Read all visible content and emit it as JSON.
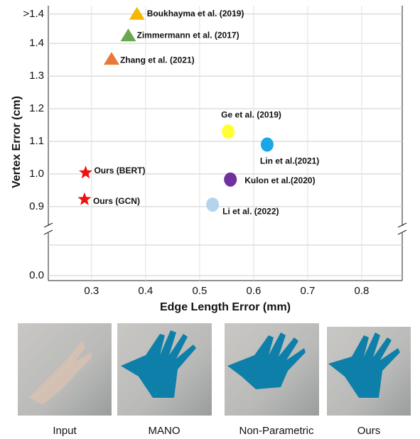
{
  "chart_data": {
    "type": "scatter",
    "x_label": "Edge Length Error (mm)",
    "y_label": "Vertex Error (cm)",
    "xlim": [
      0.22,
      0.875
    ],
    "xticks": [
      0.3,
      0.4,
      0.5,
      0.6,
      0.7,
      0.8
    ],
    "ylim": [
      0.83,
      1.52
    ],
    "yticks": [
      {
        "value": 1.49,
        "label": ">1.4"
      },
      1.4,
      1.3,
      1.2,
      1.1,
      {
        "value": 1,
        "label": "1.0"
      },
      0.9,
      {
        "value": 0,
        "label": "0.0"
      }
    ],
    "grid": true,
    "series": [
      {
        "name": "Boukhayma et al. (2019)",
        "color": "#f5b800",
        "marker": "triangle",
        "x": 0.384,
        "y": 1.49
      },
      {
        "name": "Zimmermann et al. (2017)",
        "color": "#6aa84f",
        "marker": "triangle",
        "x": 0.368,
        "y": 1.424
      },
      {
        "name": "Zhang et al. (2021)",
        "color": "#e8793a",
        "marker": "triangle",
        "x": 0.337,
        "y": 1.352
      },
      {
        "name": "Ge et al. (2019)",
        "color": "#ffff33",
        "marker": "circle",
        "x": 0.553,
        "y": 1.13
      },
      {
        "name": "Lin et al.(2021)",
        "color": "#1aa7e8",
        "marker": "circle",
        "x": 0.625,
        "y": 1.09
      },
      {
        "name": "Kulon et al.(2020)",
        "color": "#7030a0",
        "marker": "circle",
        "x": 0.557,
        "y": 0.983
      },
      {
        "name": "Li et al. (2022)",
        "color": "#b4d4ee",
        "marker": "circle",
        "x": 0.524,
        "y": 0.906
      },
      {
        "name": "Ours (BERT)",
        "color": "#ee1111",
        "marker": "star",
        "x": 0.289,
        "y": 1.004
      },
      {
        "name": "Ours (GCN)",
        "color": "#ee1111",
        "marker": "star",
        "x": 0.287,
        "y": 0.922
      }
    ]
  },
  "images": {
    "captions": [
      "Input",
      "MANO",
      "Non-Parametric",
      "Ours"
    ]
  }
}
